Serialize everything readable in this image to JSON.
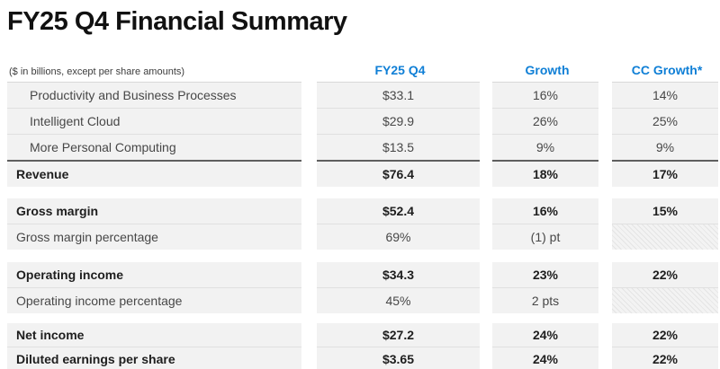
{
  "title": "FY25 Q4 Financial Summary",
  "header": {
    "subtitle": "($ in billions, except per share amounts)",
    "columns": [
      "FY25 Q4",
      "Growth",
      "CC Growth*"
    ]
  },
  "colors": {
    "accent_blue": "#0F7FD6",
    "row_background": "#F2F2F2",
    "total_line": "#5F5F5F",
    "hatch_stripe": "#E4E4E4"
  },
  "table": {
    "rows": [
      {
        "label": "Productivity and Business Processes",
        "fy25_q4": "$33.1",
        "growth": "16%",
        "cc_growth": "14%",
        "bold": false,
        "indent": true
      },
      {
        "label": "Intelligent Cloud",
        "fy25_q4": "$29.9",
        "growth": "26%",
        "cc_growth": "25%",
        "bold": false,
        "indent": true
      },
      {
        "label": "More Personal Computing",
        "fy25_q4": "$13.5",
        "growth": "9%",
        "cc_growth": "9%",
        "bold": false,
        "indent": true
      },
      {
        "label": "Revenue",
        "fy25_q4": "$76.4",
        "growth": "18%",
        "cc_growth": "17%",
        "bold": true,
        "indent": false
      },
      {
        "label": "Gross margin",
        "fy25_q4": "$52.4",
        "growth": "16%",
        "cc_growth": "15%",
        "bold": true,
        "indent": false
      },
      {
        "label": "Gross margin percentage",
        "fy25_q4": "69%",
        "growth": "(1) pt",
        "cc_growth": null,
        "cc_hatched": true,
        "bold": false,
        "indent": false
      },
      {
        "label": "Operating income",
        "fy25_q4": "$34.3",
        "growth": "23%",
        "cc_growth": "22%",
        "bold": true,
        "indent": false
      },
      {
        "label": "Operating income percentage",
        "fy25_q4": "45%",
        "growth": "2 pts",
        "cc_growth": null,
        "cc_hatched": true,
        "bold": false,
        "indent": false
      },
      {
        "label": "Net income",
        "fy25_q4": "$27.2",
        "growth": "24%",
        "cc_growth": "22%",
        "bold": true,
        "indent": false
      },
      {
        "label": "Diluted earnings per share",
        "fy25_q4": "$3.65",
        "growth": "24%",
        "cc_growth": "22%",
        "bold": true,
        "indent": false
      }
    ]
  }
}
